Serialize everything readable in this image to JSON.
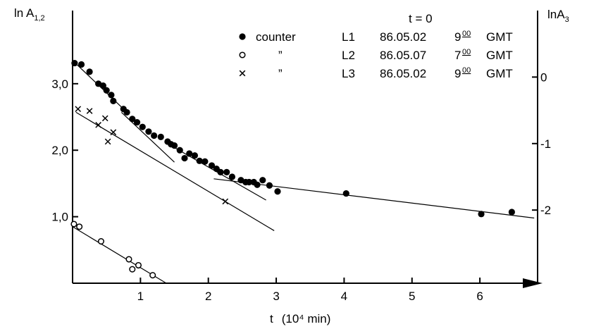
{
  "chart_data": {
    "type": "scatter",
    "xlabel": "t",
    "xunit": "(10⁴ min)",
    "ylabel_left": "ln A",
    "ylabel_left_sub": "1,2",
    "ylabel_right": "lnA",
    "ylabel_right_sub": "3",
    "xlim": [
      0,
      6.85
    ],
    "ylim_left": [
      0,
      4.1
    ],
    "ylim_right_offset": 3.1,
    "x_ticks": [
      {
        "value": 1,
        "label": "1"
      },
      {
        "value": 2,
        "label": "2"
      },
      {
        "value": 3,
        "label": "3"
      },
      {
        "value": 4,
        "label": "4"
      },
      {
        "value": 5,
        "label": "5"
      },
      {
        "value": 6,
        "label": "6"
      }
    ],
    "y_left_ticks": [
      {
        "value": 1.0,
        "label": "1,0"
      },
      {
        "value": 2.0,
        "label": "2,0"
      },
      {
        "value": 3.0,
        "label": "3,0"
      }
    ],
    "y_right_ticks": [
      {
        "value": 0,
        "label": "0"
      },
      {
        "value": -1,
        "label": "-1"
      },
      {
        "value": -2,
        "label": "-2"
      }
    ],
    "legend": {
      "header": "t = 0",
      "rows": [
        {
          "marker": "filled-circle",
          "name": "counter",
          "id": "L1",
          "date": "86.05.02",
          "hour": "9",
          "minutes": "00",
          "zone": "GMT"
        },
        {
          "marker": "open-circle",
          "name": "”",
          "id": "L2",
          "date": "86.05.07",
          "hour": "7",
          "minutes": "00",
          "zone": "GMT"
        },
        {
          "marker": "cross",
          "name": "”",
          "id": "L3",
          "date": "86.05.02",
          "hour": "9",
          "minutes": "00",
          "zone": "GMT"
        }
      ]
    },
    "series": [
      {
        "marker": "filled-circle",
        "points": [
          [
            0.03,
            3.31
          ],
          [
            0.13,
            3.29
          ],
          [
            0.25,
            3.18
          ],
          [
            0.38,
            3.0
          ],
          [
            0.45,
            2.97
          ],
          [
            0.5,
            2.9
          ],
          [
            0.57,
            2.83
          ],
          [
            0.6,
            2.74
          ],
          [
            0.75,
            2.62
          ],
          [
            0.8,
            2.57
          ],
          [
            0.88,
            2.47
          ],
          [
            0.95,
            2.42
          ],
          [
            1.03,
            2.35
          ],
          [
            1.12,
            2.28
          ],
          [
            1.2,
            2.22
          ],
          [
            1.3,
            2.2
          ],
          [
            1.4,
            2.13
          ],
          [
            1.45,
            2.09
          ],
          [
            1.5,
            2.07
          ],
          [
            1.58,
            2.0
          ],
          [
            1.65,
            1.88
          ],
          [
            1.72,
            1.95
          ],
          [
            1.8,
            1.92
          ],
          [
            1.87,
            1.84
          ],
          [
            1.95,
            1.83
          ],
          [
            2.05,
            1.77
          ],
          [
            2.12,
            1.72
          ],
          [
            2.18,
            1.67
          ],
          [
            2.27,
            1.67
          ],
          [
            2.35,
            1.6
          ],
          [
            2.48,
            1.55
          ],
          [
            2.55,
            1.52
          ],
          [
            2.6,
            1.52
          ],
          [
            2.67,
            1.52
          ],
          [
            2.72,
            1.48
          ],
          [
            2.8,
            1.55
          ],
          [
            2.9,
            1.47
          ],
          [
            3.02,
            1.38
          ],
          [
            4.03,
            1.35
          ],
          [
            6.02,
            1.04
          ],
          [
            6.47,
            1.07
          ]
        ]
      },
      {
        "marker": "open-circle",
        "points": [
          [
            0.02,
            0.89
          ],
          [
            0.1,
            0.85
          ],
          [
            0.42,
            0.63
          ],
          [
            0.83,
            0.36
          ],
          [
            0.88,
            0.21
          ],
          [
            0.97,
            0.27
          ],
          [
            1.18,
            0.12
          ]
        ]
      },
      {
        "marker": "cross",
        "points": [
          [
            0.08,
            2.62
          ],
          [
            0.25,
            2.59
          ],
          [
            0.38,
            2.38
          ],
          [
            0.48,
            2.48
          ],
          [
            0.52,
            2.13
          ],
          [
            0.6,
            2.27
          ],
          [
            2.25,
            1.23
          ]
        ]
      }
    ],
    "fit_lines": [
      {
        "from": [
          0.0,
          3.35
        ],
        "to": [
          0.75,
          2.62
        ]
      },
      {
        "from": [
          0.72,
          2.57
        ],
        "to": [
          1.5,
          1.82
        ]
      },
      {
        "from": [
          1.5,
          2.04
        ],
        "to": [
          2.85,
          1.25
        ]
      },
      {
        "from": [
          2.08,
          1.57
        ],
        "to": [
          6.8,
          0.98
        ]
      },
      {
        "from": [
          0.05,
          2.57
        ],
        "to": [
          2.97,
          0.79
        ]
      },
      {
        "from": [
          0.0,
          0.85
        ],
        "to": [
          1.38,
          0.0
        ]
      }
    ]
  }
}
